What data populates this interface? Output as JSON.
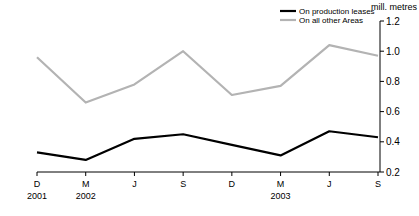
{
  "chart_data": {
    "type": "line",
    "y_label": "mill. metres",
    "categories": [
      "D",
      "M",
      "J",
      "S",
      "D",
      "M",
      "J",
      "S"
    ],
    "years": [
      "2001",
      "2002",
      null,
      null,
      null,
      "2003",
      null,
      null
    ],
    "series": [
      {
        "name": "On production leases",
        "color": "#000000",
        "values": [
          0.33,
          0.28,
          0.42,
          0.45,
          0.38,
          0.31,
          0.47,
          0.43
        ]
      },
      {
        "name": "On all other Areas",
        "color": "#b3b3b3",
        "values": [
          0.96,
          0.66,
          0.78,
          1.0,
          0.71,
          0.77,
          1.04,
          0.97
        ]
      }
    ],
    "ylim": [
      0.2,
      1.2
    ],
    "yticks": [
      {
        "value": 0.2,
        "label": "0.2"
      },
      {
        "value": 0.4,
        "label": "0.4"
      },
      {
        "value": 0.6,
        "label": "0.6"
      },
      {
        "value": 0.8,
        "label": "0.8"
      },
      {
        "value": 1.0,
        "label": "1.0"
      },
      {
        "value": 1.2,
        "label": "1.2"
      }
    ],
    "grid": false,
    "legend": "top-right"
  }
}
